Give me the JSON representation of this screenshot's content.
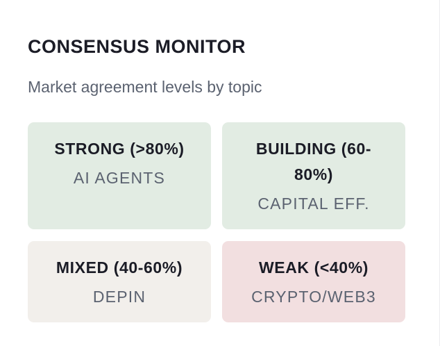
{
  "monitor": {
    "title": "CONSENSUS MONITOR",
    "subtitle": "Market agreement levels by topic",
    "cards": [
      {
        "level": "STRONG (>80%)",
        "topic": "AI AGENTS",
        "color": "#e2ece3"
      },
      {
        "level": "BUILDING (60-80%)",
        "topic": "CAPITAL EFF.",
        "color": "#e2ece3"
      },
      {
        "level": "MIXED (40-60%)",
        "topic": "DEPIN",
        "color": "#f2efeb"
      },
      {
        "level": "WEAK (<40%)",
        "topic": "CRYPTO/WEB3",
        "color": "#f2dfe0"
      }
    ]
  }
}
